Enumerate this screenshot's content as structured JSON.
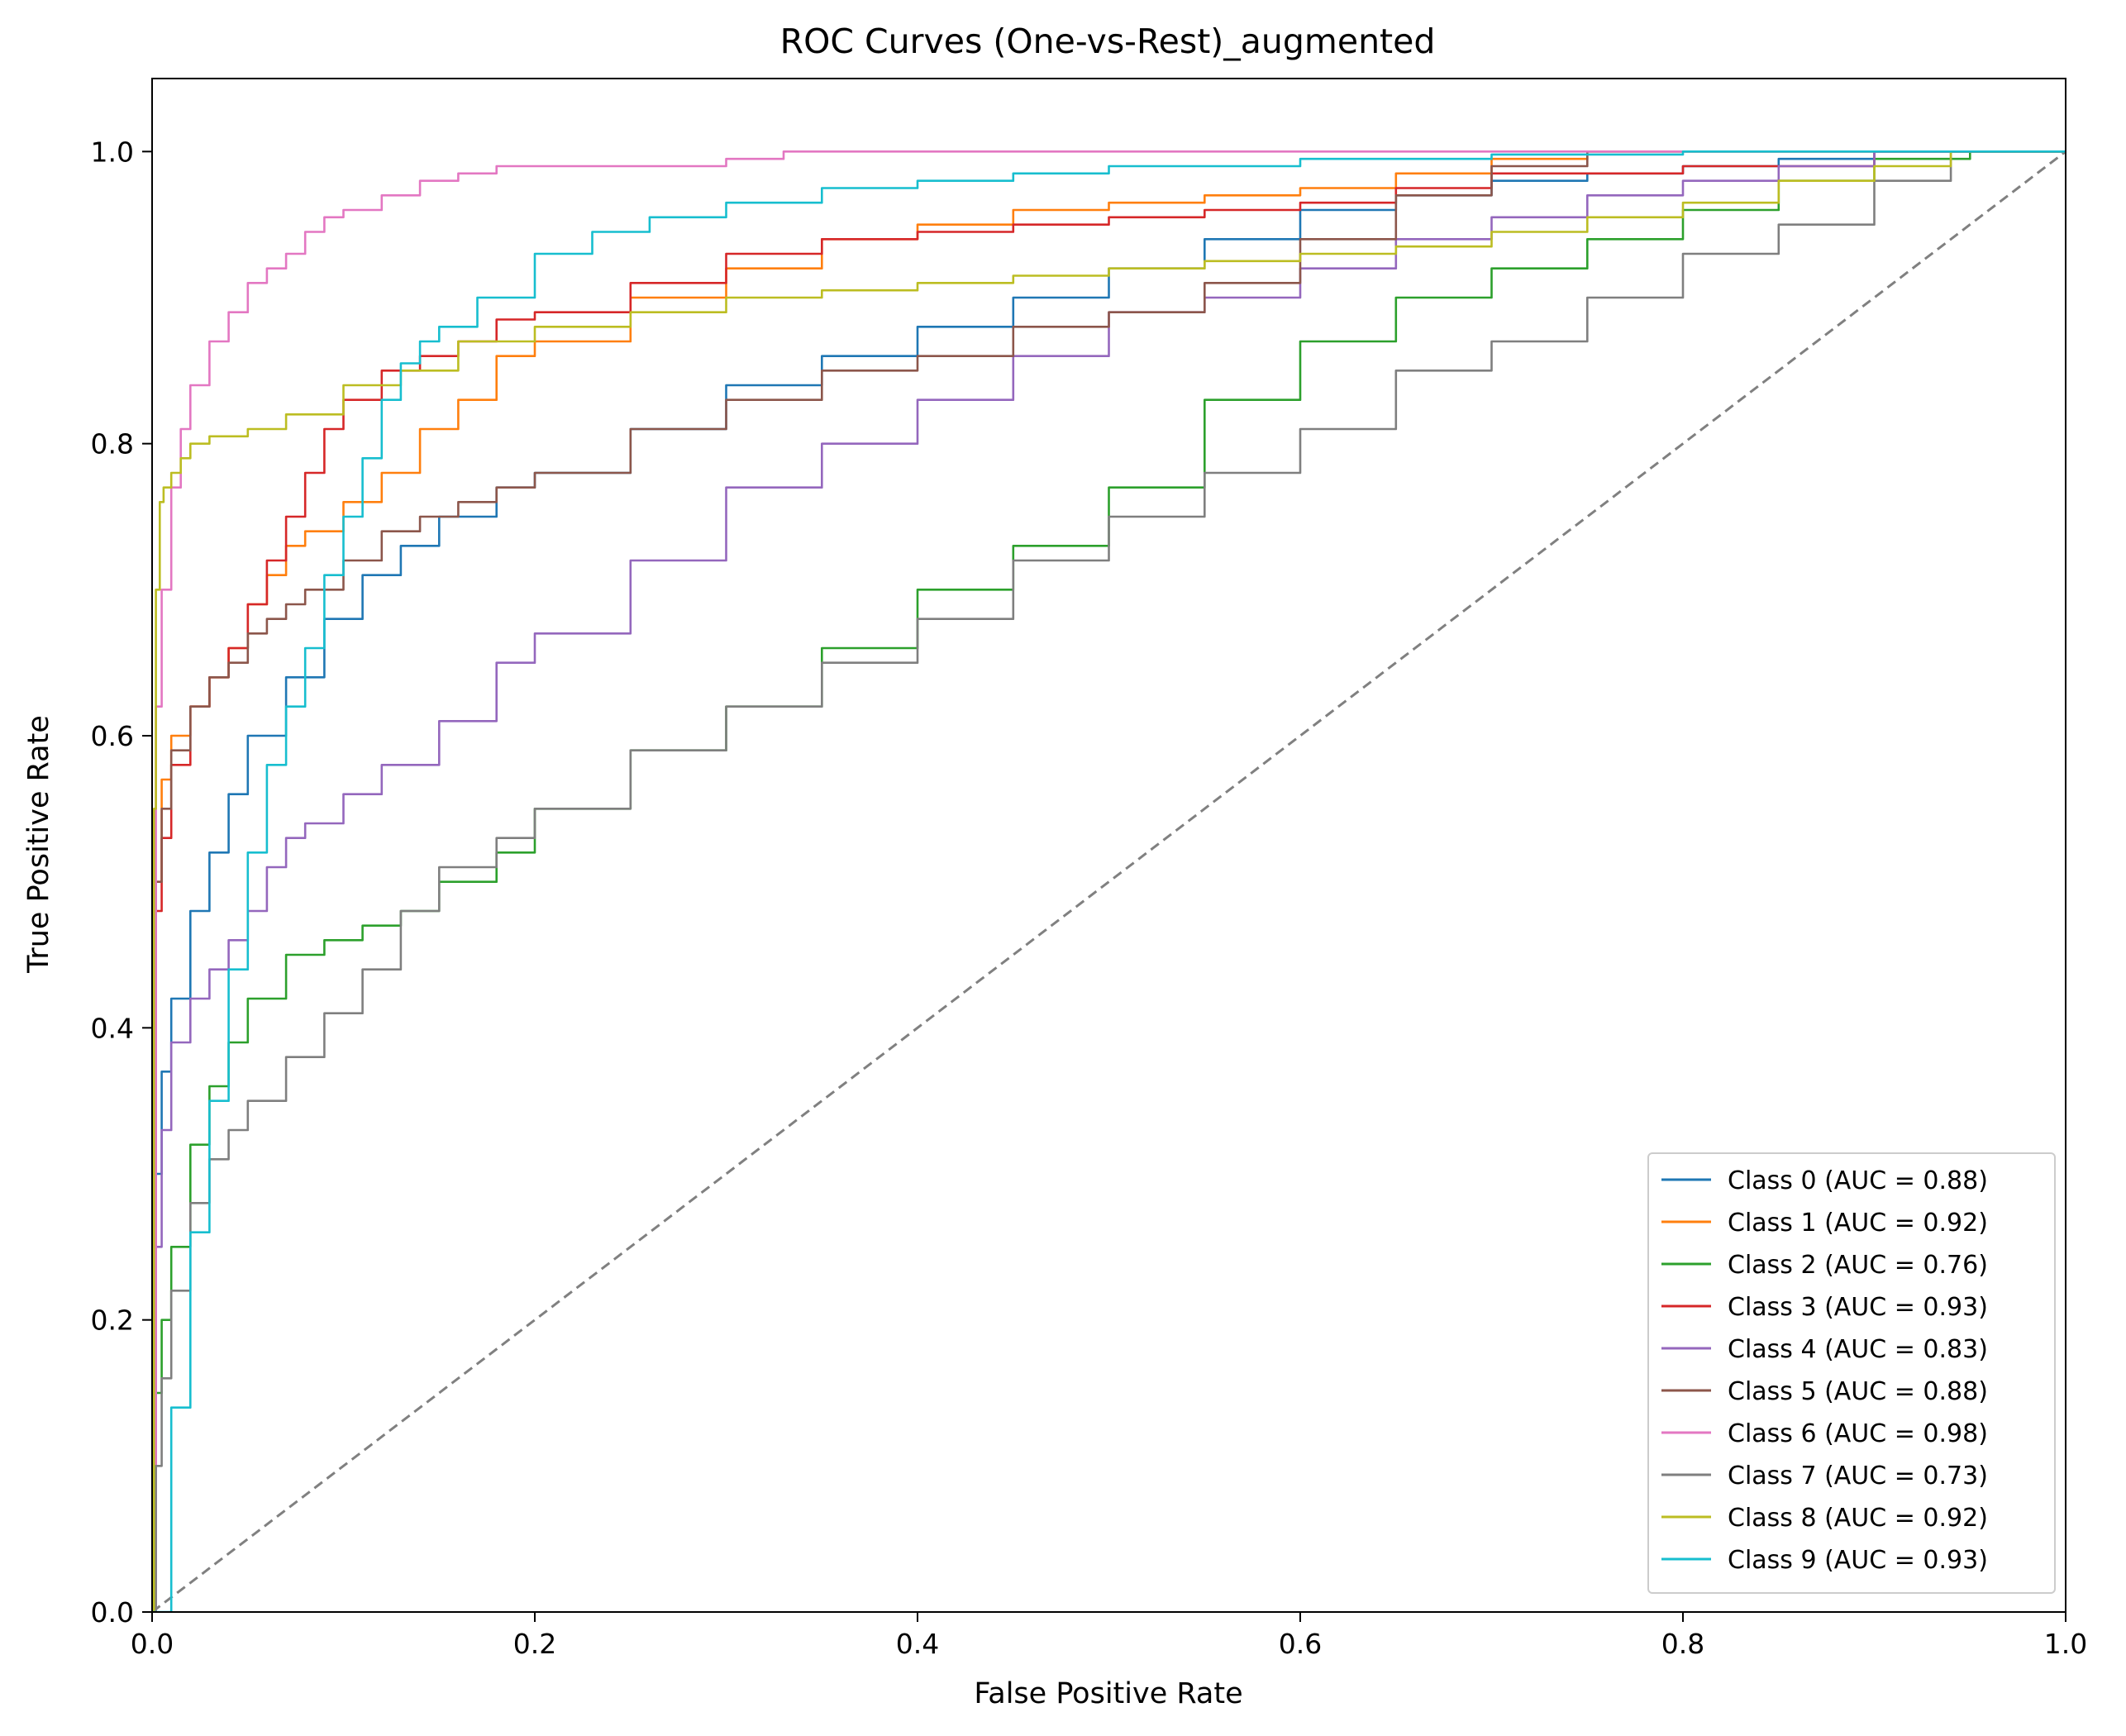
{
  "chart_data": {
    "type": "line",
    "title": "ROC Curves (One-vs-Rest)_augmented",
    "xlabel": "False Positive Rate",
    "ylabel": "True Positive Rate",
    "xlim": [
      0.0,
      1.0
    ],
    "ylim": [
      0.0,
      1.05
    ],
    "grid": false,
    "legend_position": "lower-right",
    "x_ticks": [
      "0.0",
      "0.2",
      "0.4",
      "0.6",
      "0.8",
      "1.0"
    ],
    "y_ticks": [
      "0.0",
      "0.2",
      "0.4",
      "0.6",
      "0.8",
      "1.0"
    ],
    "x_tick_values": [
      0.0,
      0.2,
      0.4,
      0.6,
      0.8,
      1.0
    ],
    "y_tick_values": [
      0.0,
      0.2,
      0.4,
      0.6,
      0.8,
      1.0
    ],
    "reference_line": {
      "x": [
        0,
        1
      ],
      "y": [
        0,
        1
      ],
      "color": "#808080",
      "style": "dashed"
    },
    "series": [
      {
        "name": "Class 0 (AUC = 0.88)",
        "color": "#1f77b4",
        "x": [
          0,
          0.002,
          0.005,
          0.01,
          0.02,
          0.03,
          0.04,
          0.05,
          0.07,
          0.09,
          0.11,
          0.13,
          0.15,
          0.18,
          0.2,
          0.25,
          0.3,
          0.35,
          0.4,
          0.45,
          0.5,
          0.55,
          0.6,
          0.65,
          0.7,
          0.75,
          0.8,
          0.85,
          0.9,
          0.95,
          1.0
        ],
        "y": [
          0,
          0.3,
          0.37,
          0.42,
          0.48,
          0.52,
          0.56,
          0.6,
          0.64,
          0.68,
          0.71,
          0.73,
          0.75,
          0.77,
          0.78,
          0.81,
          0.84,
          0.86,
          0.88,
          0.9,
          0.92,
          0.94,
          0.96,
          0.97,
          0.98,
          0.985,
          0.99,
          0.995,
          1.0,
          1.0,
          1.0
        ]
      },
      {
        "name": "Class 1 (AUC = 0.92)",
        "color": "#ff7f0e",
        "x": [
          0,
          0.002,
          0.005,
          0.01,
          0.02,
          0.03,
          0.04,
          0.05,
          0.06,
          0.07,
          0.08,
          0.1,
          0.12,
          0.14,
          0.16,
          0.18,
          0.2,
          0.25,
          0.3,
          0.35,
          0.4,
          0.45,
          0.5,
          0.55,
          0.6,
          0.65,
          0.7,
          0.75,
          0.8,
          0.9,
          1.0
        ],
        "y": [
          0,
          0.5,
          0.57,
          0.6,
          0.62,
          0.64,
          0.66,
          0.69,
          0.71,
          0.73,
          0.74,
          0.76,
          0.78,
          0.81,
          0.83,
          0.86,
          0.87,
          0.9,
          0.92,
          0.94,
          0.95,
          0.96,
          0.965,
          0.97,
          0.975,
          0.985,
          0.995,
          1.0,
          1.0,
          1.0,
          1.0
        ]
      },
      {
        "name": "Class 2 (AUC = 0.76)",
        "color": "#2ca02c",
        "x": [
          0,
          0.002,
          0.005,
          0.01,
          0.02,
          0.03,
          0.04,
          0.05,
          0.07,
          0.09,
          0.11,
          0.13,
          0.15,
          0.18,
          0.2,
          0.25,
          0.3,
          0.35,
          0.4,
          0.45,
          0.5,
          0.55,
          0.6,
          0.65,
          0.7,
          0.75,
          0.8,
          0.85,
          0.9,
          0.95,
          1.0
        ],
        "y": [
          0,
          0.15,
          0.2,
          0.25,
          0.32,
          0.36,
          0.39,
          0.42,
          0.45,
          0.46,
          0.47,
          0.48,
          0.5,
          0.52,
          0.55,
          0.59,
          0.62,
          0.66,
          0.7,
          0.73,
          0.77,
          0.83,
          0.87,
          0.9,
          0.92,
          0.94,
          0.96,
          0.98,
          0.995,
          1.0,
          1.0
        ]
      },
      {
        "name": "Class 3 (AUC = 0.93)",
        "color": "#d62728",
        "x": [
          0,
          0.002,
          0.005,
          0.01,
          0.02,
          0.03,
          0.04,
          0.05,
          0.06,
          0.07,
          0.08,
          0.09,
          0.1,
          0.12,
          0.14,
          0.16,
          0.18,
          0.2,
          0.25,
          0.3,
          0.35,
          0.4,
          0.45,
          0.5,
          0.55,
          0.6,
          0.65,
          0.7,
          0.8,
          0.9,
          1.0
        ],
        "y": [
          0,
          0.48,
          0.53,
          0.58,
          0.62,
          0.64,
          0.66,
          0.69,
          0.72,
          0.75,
          0.78,
          0.81,
          0.83,
          0.85,
          0.86,
          0.87,
          0.885,
          0.89,
          0.91,
          0.93,
          0.94,
          0.945,
          0.95,
          0.955,
          0.96,
          0.965,
          0.975,
          0.985,
          0.99,
          1.0,
          1.0
        ]
      },
      {
        "name": "Class 4 (AUC = 0.83)",
        "color": "#9467bd",
        "x": [
          0,
          0.002,
          0.005,
          0.01,
          0.02,
          0.03,
          0.04,
          0.05,
          0.06,
          0.07,
          0.08,
          0.1,
          0.12,
          0.15,
          0.18,
          0.2,
          0.25,
          0.3,
          0.35,
          0.4,
          0.45,
          0.5,
          0.55,
          0.6,
          0.65,
          0.7,
          0.75,
          0.8,
          0.85,
          0.9,
          1.0
        ],
        "y": [
          0,
          0.25,
          0.33,
          0.39,
          0.42,
          0.44,
          0.46,
          0.48,
          0.51,
          0.53,
          0.54,
          0.56,
          0.58,
          0.61,
          0.65,
          0.67,
          0.72,
          0.77,
          0.8,
          0.83,
          0.86,
          0.89,
          0.9,
          0.92,
          0.94,
          0.955,
          0.97,
          0.98,
          0.99,
          1.0,
          1.0
        ]
      },
      {
        "name": "Class 5 (AUC = 0.88)",
        "color": "#8c564b",
        "x": [
          0,
          0.002,
          0.005,
          0.01,
          0.02,
          0.03,
          0.04,
          0.05,
          0.06,
          0.07,
          0.08,
          0.1,
          0.12,
          0.14,
          0.16,
          0.18,
          0.2,
          0.25,
          0.3,
          0.35,
          0.4,
          0.45,
          0.5,
          0.55,
          0.6,
          0.65,
          0.7,
          0.75,
          0.8,
          0.9,
          1.0
        ],
        "y": [
          0,
          0.5,
          0.55,
          0.59,
          0.62,
          0.64,
          0.65,
          0.67,
          0.68,
          0.69,
          0.7,
          0.72,
          0.74,
          0.75,
          0.76,
          0.77,
          0.78,
          0.81,
          0.83,
          0.85,
          0.86,
          0.88,
          0.89,
          0.91,
          0.94,
          0.97,
          0.99,
          1.0,
          1.0,
          1.0,
          1.0
        ]
      },
      {
        "name": "Class 6 (AUC = 0.98)",
        "color": "#e377c2",
        "x": [
          0,
          0.002,
          0.005,
          0.01,
          0.015,
          0.02,
          0.03,
          0.04,
          0.05,
          0.06,
          0.07,
          0.08,
          0.09,
          0.1,
          0.12,
          0.14,
          0.16,
          0.18,
          0.2,
          0.25,
          0.3,
          0.33,
          0.35,
          0.4,
          0.5,
          0.6,
          0.7,
          0.8,
          0.9,
          1.0
        ],
        "y": [
          0,
          0.62,
          0.7,
          0.77,
          0.81,
          0.84,
          0.87,
          0.89,
          0.91,
          0.92,
          0.93,
          0.945,
          0.955,
          0.96,
          0.97,
          0.98,
          0.985,
          0.99,
          0.99,
          0.99,
          0.995,
          1.0,
          1.0,
          1.0,
          1.0,
          1.0,
          1.0,
          1.0,
          1.0,
          1.0
        ]
      },
      {
        "name": "Class 7 (AUC = 0.73)",
        "color": "#7f7f7f",
        "x": [
          0,
          0.002,
          0.005,
          0.01,
          0.02,
          0.03,
          0.04,
          0.05,
          0.07,
          0.09,
          0.11,
          0.13,
          0.15,
          0.18,
          0.2,
          0.25,
          0.3,
          0.35,
          0.4,
          0.45,
          0.5,
          0.55,
          0.6,
          0.65,
          0.7,
          0.75,
          0.8,
          0.85,
          0.9,
          0.94,
          1.0
        ],
        "y": [
          0,
          0.1,
          0.16,
          0.22,
          0.28,
          0.31,
          0.33,
          0.35,
          0.38,
          0.41,
          0.44,
          0.48,
          0.51,
          0.53,
          0.55,
          0.59,
          0.62,
          0.65,
          0.68,
          0.72,
          0.75,
          0.78,
          0.81,
          0.85,
          0.87,
          0.9,
          0.93,
          0.95,
          0.98,
          1.0,
          1.0
        ]
      },
      {
        "name": "Class 8 (AUC = 0.92)",
        "color": "#bcbd22",
        "x": [
          0,
          0.001,
          0.002,
          0.004,
          0.006,
          0.01,
          0.015,
          0.02,
          0.03,
          0.05,
          0.07,
          0.1,
          0.13,
          0.16,
          0.2,
          0.25,
          0.3,
          0.35,
          0.4,
          0.45,
          0.5,
          0.55,
          0.6,
          0.65,
          0.7,
          0.75,
          0.8,
          0.85,
          0.9,
          0.94,
          1.0
        ],
        "y": [
          0,
          0.55,
          0.7,
          0.76,
          0.77,
          0.78,
          0.79,
          0.8,
          0.805,
          0.81,
          0.82,
          0.84,
          0.85,
          0.87,
          0.88,
          0.89,
          0.9,
          0.905,
          0.91,
          0.915,
          0.92,
          0.925,
          0.93,
          0.935,
          0.945,
          0.955,
          0.965,
          0.98,
          0.99,
          1.0,
          1.0
        ]
      },
      {
        "name": "Class 9 (AUC = 0.93)",
        "color": "#17becf",
        "x": [
          0,
          0.01,
          0.02,
          0.03,
          0.04,
          0.05,
          0.06,
          0.07,
          0.08,
          0.09,
          0.1,
          0.11,
          0.12,
          0.13,
          0.14,
          0.15,
          0.17,
          0.2,
          0.23,
          0.26,
          0.3,
          0.35,
          0.4,
          0.45,
          0.5,
          0.6,
          0.7,
          0.8,
          0.9,
          1.0
        ],
        "y": [
          0,
          0.14,
          0.26,
          0.35,
          0.44,
          0.52,
          0.58,
          0.62,
          0.66,
          0.71,
          0.75,
          0.79,
          0.83,
          0.855,
          0.87,
          0.88,
          0.9,
          0.93,
          0.945,
          0.955,
          0.965,
          0.975,
          0.98,
          0.985,
          0.99,
          0.995,
          0.998,
          1.0,
          1.0,
          1.0
        ]
      }
    ]
  }
}
